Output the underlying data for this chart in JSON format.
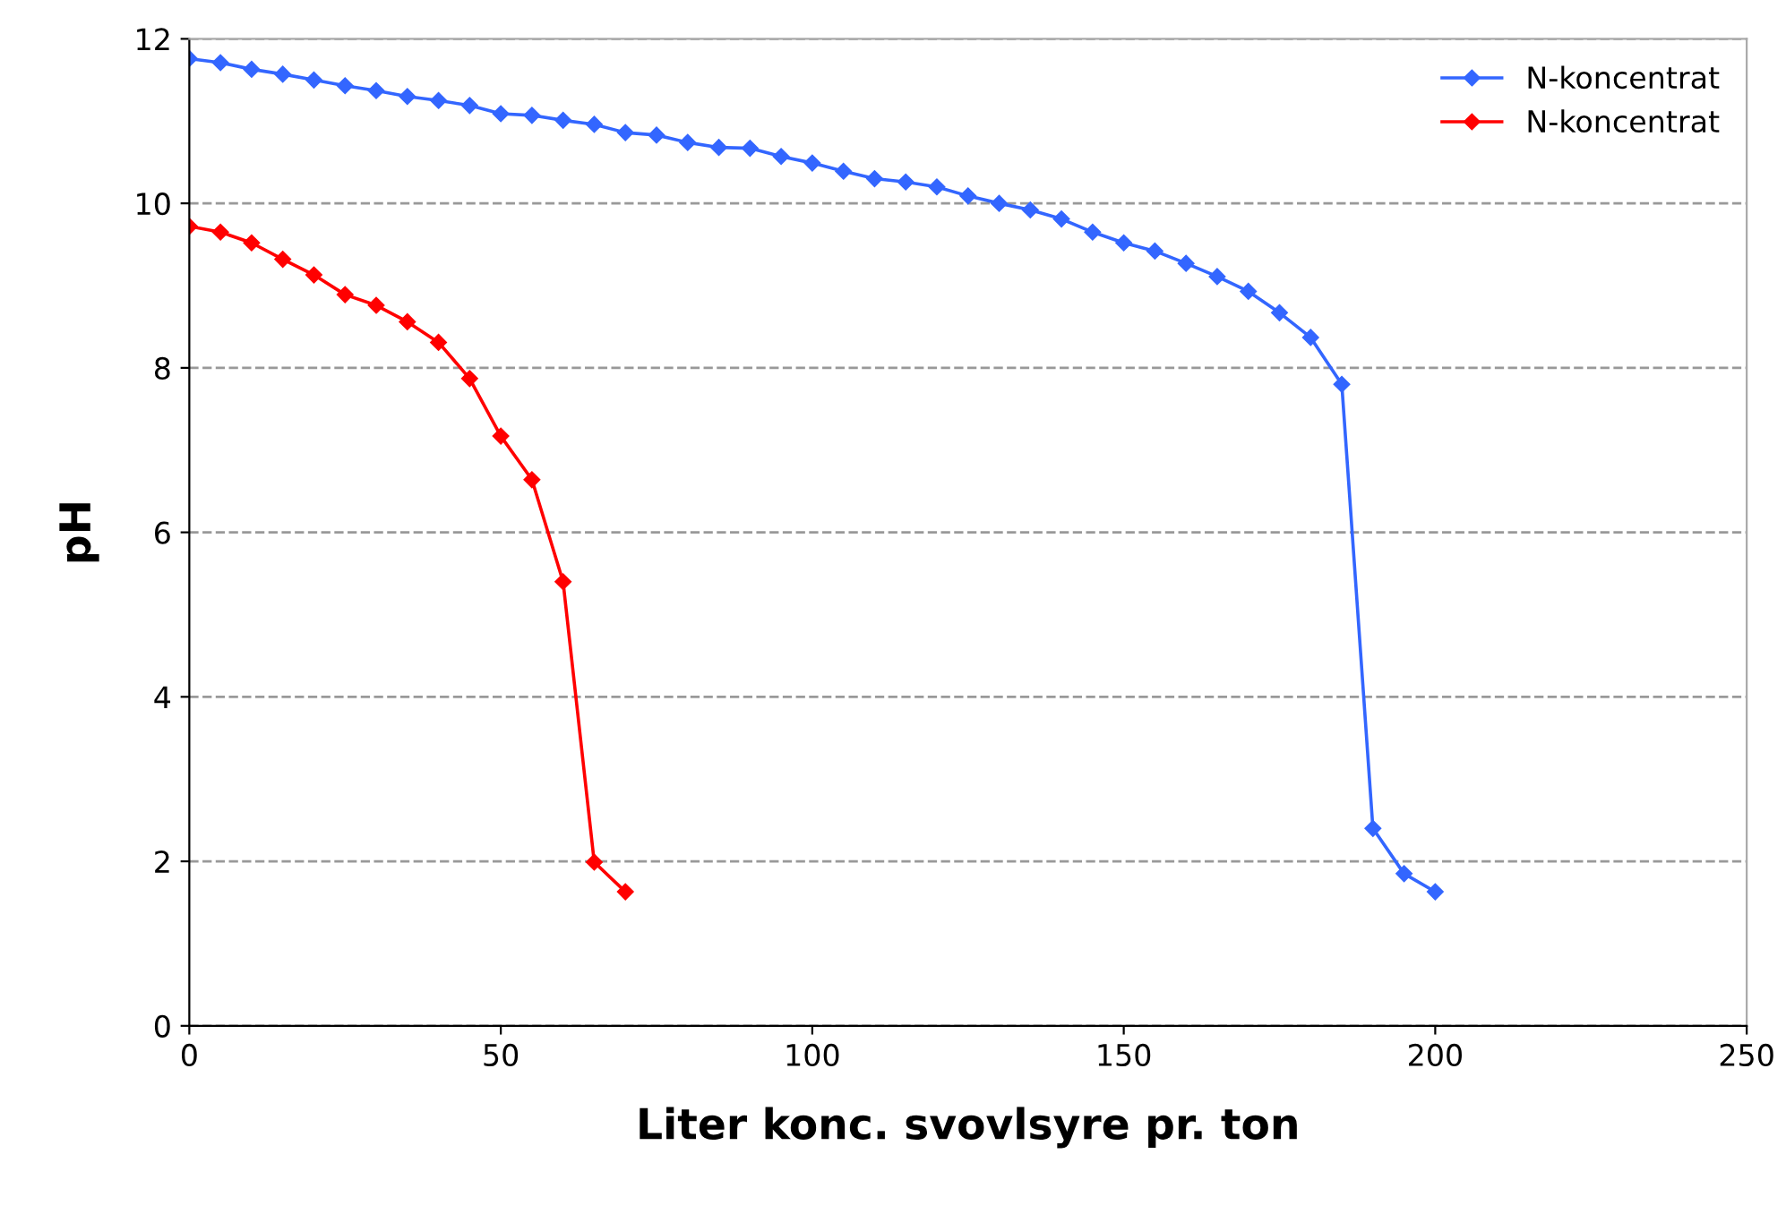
{
  "chart_data": {
    "type": "line",
    "xlabel": "Liter konc. svovlsyre pr. ton",
    "ylabel": "pH",
    "xlim": [
      0,
      250
    ],
    "xticks": [
      0,
      50,
      100,
      150,
      200,
      250
    ],
    "ylim": [
      0,
      12
    ],
    "yticks": [
      0,
      2,
      4,
      6,
      8,
      10,
      12
    ],
    "grid": "y",
    "legend": "top right",
    "marker": "diamond",
    "line_style": "solid",
    "series": [
      {
        "name": "N-koncentrat",
        "color": "#3366ff",
        "x": [
          0,
          5,
          10,
          15,
          20,
          25,
          30,
          35,
          40,
          45,
          50,
          55,
          60,
          65,
          70,
          75,
          80,
          85,
          90,
          95,
          100,
          105,
          110,
          115,
          120,
          125,
          130,
          135,
          140,
          145,
          150,
          155,
          160,
          165,
          170,
          175,
          180,
          185,
          190,
          195,
          200
        ],
        "values": [
          11.76,
          11.71,
          11.63,
          11.57,
          11.5,
          11.43,
          11.37,
          11.3,
          11.25,
          11.19,
          11.09,
          11.07,
          11.01,
          10.96,
          10.86,
          10.83,
          10.74,
          10.68,
          10.67,
          10.57,
          10.49,
          10.39,
          10.3,
          10.26,
          10.2,
          10.09,
          10.0,
          9.92,
          9.81,
          9.65,
          9.52,
          9.42,
          9.27,
          9.11,
          8.93,
          8.67,
          8.37,
          7.8,
          2.4,
          1.85,
          1.63
        ]
      },
      {
        "name": "N-koncentrat",
        "color": "#ff0000",
        "x": [
          0,
          5,
          10,
          15,
          20,
          25,
          30,
          35,
          40,
          45,
          50,
          55,
          60,
          65,
          70
        ],
        "values": [
          9.72,
          9.65,
          9.52,
          9.32,
          9.13,
          8.89,
          8.76,
          8.56,
          8.31,
          7.87,
          7.17,
          6.64,
          5.4,
          1.99,
          1.63
        ]
      }
    ]
  }
}
